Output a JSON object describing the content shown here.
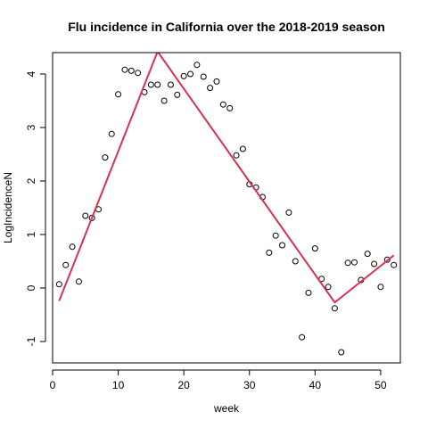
{
  "chart_data": {
    "type": "scatter",
    "title": "Flu incidence in California over the 2018-2019 season",
    "xlabel": "week",
    "ylabel": "LogIncidenceN",
    "xlim": [
      0,
      53
    ],
    "ylim": [
      -1.4,
      4.4
    ],
    "xticks": [
      0,
      10,
      20,
      30,
      40,
      50
    ],
    "yticks": [
      -1,
      0,
      1,
      2,
      3,
      4
    ],
    "grid": false,
    "legend": "none",
    "series": [
      {
        "kind": "points",
        "marker": "open-circle",
        "color": "#000000",
        "x": [
          1,
          2,
          3,
          4,
          5,
          6,
          7,
          8,
          9,
          10,
          11,
          12,
          13,
          14,
          15,
          16,
          17,
          18,
          19,
          20,
          21,
          22,
          23,
          24,
          25,
          26,
          27,
          28,
          29,
          30,
          31,
          32,
          33,
          34,
          35,
          36,
          37,
          38,
          39,
          40,
          41,
          42,
          43,
          44,
          45,
          46,
          47,
          48,
          49,
          50,
          51,
          52
        ],
        "y": [
          0.07,
          0.43,
          0.77,
          0.12,
          1.35,
          1.31,
          1.47,
          2.44,
          2.88,
          3.62,
          4.08,
          4.06,
          4.02,
          3.66,
          3.8,
          3.8,
          3.5,
          3.8,
          3.61,
          3.96,
          4.0,
          4.17,
          3.95,
          3.74,
          3.86,
          3.43,
          3.36,
          2.48,
          2.6,
          1.94,
          1.88,
          1.7,
          0.66,
          0.98,
          0.8,
          1.41,
          0.5,
          -0.92,
          -0.09,
          0.74,
          0.17,
          0.02,
          -0.38,
          -1.2,
          0.47,
          0.48,
          0.15,
          0.64,
          0.45,
          0.02,
          0.53,
          0.43
        ]
      },
      {
        "kind": "line",
        "color": "#d6334f",
        "x": [
          1,
          16,
          43,
          52
        ],
        "y": [
          -0.24,
          4.42,
          -0.27,
          0.61
        ]
      }
    ]
  }
}
